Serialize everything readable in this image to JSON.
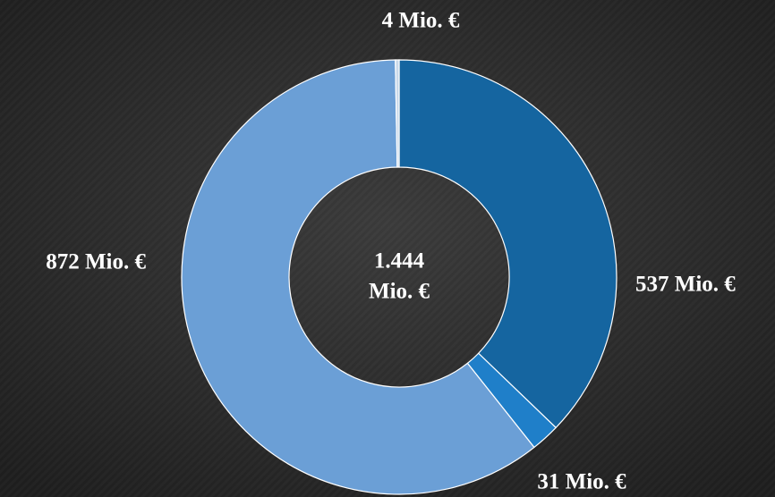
{
  "chart_data": {
    "type": "donut",
    "categories": [
      null,
      null,
      null,
      null
    ],
    "values": [
      537,
      31,
      872,
      4
    ],
    "value_labels": [
      "537 Mio. €",
      "31 Mio. €",
      "872 Mio. €",
      "4 Mio. €"
    ],
    "colors": [
      "#1565a0",
      "#1f7fc9",
      "#6b9fd6",
      "#c9d9ea"
    ],
    "center_label": [
      "1.444",
      "Mio. €"
    ]
  }
}
